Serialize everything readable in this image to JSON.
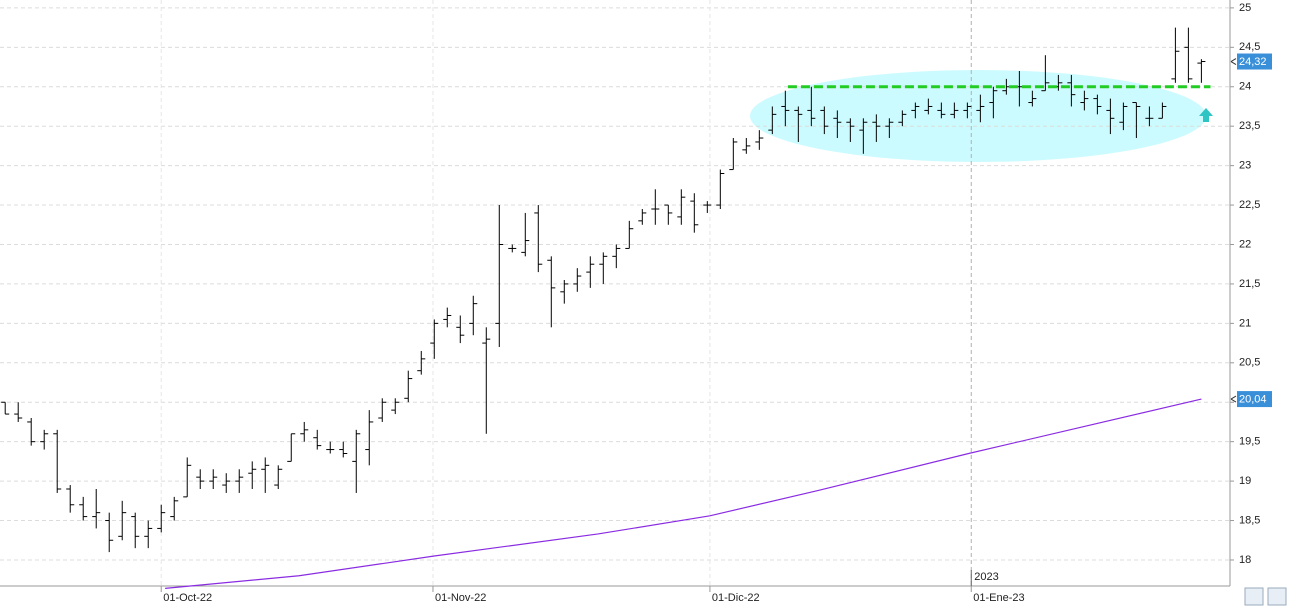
{
  "chart_data": {
    "type": "ohlc",
    "ohlc": {
      "color": "#000000",
      "open": [
        20.0,
        19.85,
        19.75,
        19.5,
        19.6,
        18.9,
        18.7,
        18.55,
        18.5,
        18.3,
        18.55,
        18.3,
        18.4,
        18.55,
        18.8,
        19.05,
        19.0,
        18.95,
        19.0,
        19.1,
        19.15,
        18.95,
        19.25,
        19.6,
        19.55,
        19.4,
        19.4,
        19.25,
        19.4,
        19.8,
        19.9,
        20.05,
        20.4,
        20.75,
        21.05,
        20.95,
        21.0,
        20.75,
        21.0,
        21.95,
        21.9,
        22.4,
        21.8,
        21.4,
        21.5,
        21.65,
        21.75,
        21.85,
        21.95,
        22.3,
        22.45,
        22.5,
        22.35,
        22.55,
        22.5,
        22.5,
        22.95,
        23.2,
        23.3,
        23.45,
        23.75,
        23.7,
        23.7,
        23.7,
        23.6,
        23.55,
        23.45,
        23.55,
        23.5,
        23.55,
        23.7,
        23.7,
        23.7,
        23.65,
        23.7,
        23.7,
        23.8,
        23.95,
        24.0,
        23.8,
        23.95,
        24.0,
        24.05,
        23.8,
        23.85,
        23.7,
        23.55,
        23.8,
        23.6,
        23.6,
        24.1,
        24.5,
        24.3
      ],
      "high": [
        20.0,
        20.0,
        19.8,
        19.65,
        19.65,
        18.95,
        18.8,
        18.9,
        18.6,
        18.75,
        18.6,
        18.5,
        18.7,
        18.8,
        19.3,
        19.15,
        19.15,
        19.1,
        19.15,
        19.25,
        19.3,
        19.2,
        19.6,
        19.75,
        19.65,
        19.5,
        19.5,
        19.65,
        19.9,
        20.05,
        20.05,
        20.4,
        20.65,
        21.05,
        21.2,
        21.1,
        21.35,
        20.95,
        22.5,
        22.0,
        22.4,
        22.5,
        21.85,
        21.55,
        21.7,
        21.85,
        21.9,
        22.0,
        22.3,
        22.45,
        22.7,
        22.5,
        22.7,
        22.65,
        22.55,
        22.95,
        23.35,
        23.35,
        23.45,
        23.75,
        23.95,
        23.75,
        24.0,
        23.75,
        23.7,
        23.6,
        23.6,
        23.65,
        23.6,
        23.7,
        23.8,
        23.85,
        23.8,
        23.8,
        23.8,
        23.9,
        24.0,
        24.1,
        24.2,
        23.95,
        24.4,
        24.15,
        24.15,
        23.95,
        23.9,
        23.85,
        23.8,
        23.8,
        23.75,
        23.8,
        24.75,
        24.75,
        24.35
      ],
      "low": [
        19.85,
        19.75,
        19.45,
        19.4,
        18.85,
        18.6,
        18.5,
        18.4,
        18.1,
        18.25,
        18.15,
        18.15,
        18.35,
        18.5,
        18.8,
        18.9,
        18.9,
        18.85,
        18.85,
        18.9,
        18.85,
        18.9,
        19.25,
        19.5,
        19.4,
        19.35,
        19.3,
        18.85,
        19.2,
        19.75,
        19.85,
        20.0,
        20.35,
        20.55,
        20.95,
        20.75,
        20.85,
        19.6,
        20.7,
        21.9,
        21.85,
        21.65,
        20.95,
        21.25,
        21.4,
        21.45,
        21.5,
        21.7,
        21.95,
        22.25,
        22.25,
        22.25,
        22.25,
        22.15,
        22.4,
        22.45,
        22.95,
        23.15,
        23.2,
        23.4,
        23.5,
        23.3,
        23.5,
        23.4,
        23.35,
        23.3,
        23.15,
        23.3,
        23.35,
        23.5,
        23.6,
        23.65,
        23.6,
        23.6,
        23.6,
        23.55,
        23.6,
        23.9,
        23.75,
        23.75,
        23.95,
        23.95,
        23.75,
        23.7,
        23.65,
        23.4,
        23.45,
        23.35,
        23.5,
        23.6,
        24.05,
        24.05,
        24.05
      ],
      "close": [
        19.85,
        19.8,
        19.5,
        19.6,
        18.9,
        18.7,
        18.55,
        18.6,
        18.25,
        18.6,
        18.3,
        18.4,
        18.6,
        18.75,
        19.2,
        19.0,
        19.05,
        19.0,
        19.05,
        19.15,
        19.2,
        19.15,
        19.6,
        19.65,
        19.45,
        19.4,
        19.35,
        19.6,
        19.75,
        20.0,
        20.0,
        20.3,
        20.55,
        21.0,
        21.1,
        20.85,
        21.25,
        20.8,
        22.0,
        21.95,
        22.05,
        21.75,
        21.45,
        21.5,
        21.6,
        21.75,
        21.85,
        21.95,
        22.2,
        22.4,
        22.45,
        22.4,
        22.6,
        22.25,
        22.5,
        22.9,
        23.3,
        23.25,
        23.35,
        23.65,
        23.7,
        23.65,
        23.6,
        23.5,
        23.55,
        23.5,
        23.55,
        23.5,
        23.55,
        23.65,
        23.75,
        23.75,
        23.65,
        23.7,
        23.75,
        23.75,
        23.95,
        24.0,
        24.0,
        23.85,
        24.05,
        24.05,
        23.9,
        23.85,
        23.75,
        23.6,
        23.75,
        23.75,
        23.6,
        23.75,
        24.45,
        24.1,
        24.32
      ]
    },
    "moving_average": {
      "color": "#8a2be2",
      "x": [
        12.3,
        22.6,
        33.0,
        45.6,
        54.2,
        62.5,
        74.1,
        92.0
      ],
      "values": [
        17.64,
        17.8,
        18.05,
        18.33,
        18.56,
        18.88,
        19.35,
        20.04
      ]
    },
    "hline": {
      "value": 24.0,
      "color": "#22cc22",
      "x": [
        60.2,
        92.7
      ]
    },
    "price_tags": [
      {
        "value": 24.32,
        "label": "24,32"
      },
      {
        "value": 20.04,
        "label": "20,04"
      }
    ],
    "tag_color": "#3a8fd9",
    "year_annotation": {
      "x": 74.3,
      "label": "2023"
    },
    "xlim": [
      -0.4,
      94.2
    ],
    "xticks": [
      {
        "value": 12.0,
        "label": "01-Oct-22"
      },
      {
        "value": 32.9,
        "label": "01-Nov-22"
      },
      {
        "value": 54.2,
        "label": "01-Dic-22"
      },
      {
        "value": 74.3,
        "label": "01-Ene-23"
      }
    ],
    "ylim": [
      17.67,
      25.1
    ],
    "yticks": [
      18,
      {
        "value": 18.5,
        "label": "18,5"
      },
      19,
      {
        "value": 19.5,
        "label": "19,5"
      },
      20,
      {
        "value": 20.5,
        "label": "20,5"
      },
      21,
      {
        "value": 21.5,
        "label": "21,5"
      },
      22,
      {
        "value": 22.5,
        "label": "22,5"
      },
      23,
      {
        "value": 23.5,
        "label": "23,5"
      },
      24,
      {
        "value": 24.5,
        "label": "24,5"
      },
      25
    ],
    "grid": true
  }
}
